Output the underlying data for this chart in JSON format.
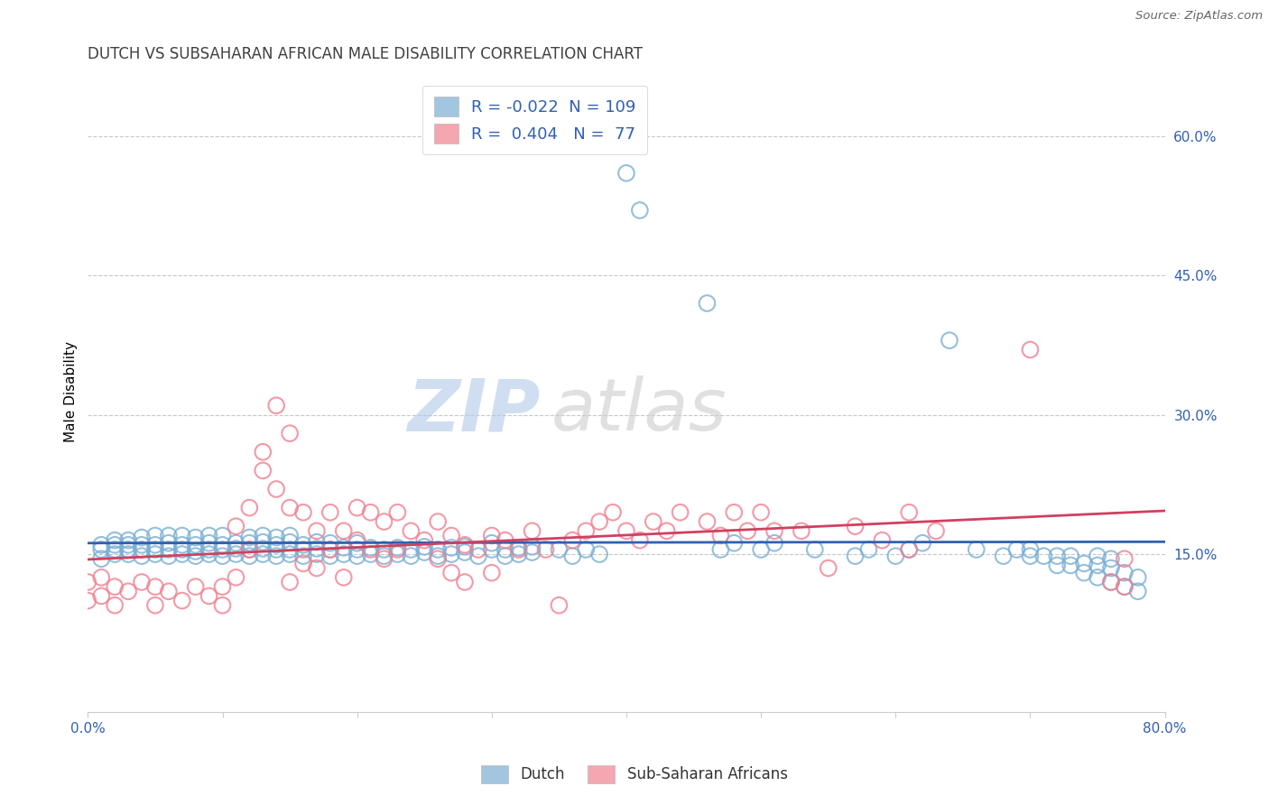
{
  "title": "DUTCH VS SUBSAHARAN AFRICAN MALE DISABILITY CORRELATION CHART",
  "source": "Source: ZipAtlas.com",
  "ylabel": "Male Disability",
  "xlim": [
    0.0,
    0.8
  ],
  "ylim": [
    -0.02,
    0.67
  ],
  "x_ticks": [
    0.0,
    0.1,
    0.2,
    0.3,
    0.4,
    0.5,
    0.6,
    0.7,
    0.8
  ],
  "x_tick_labels": [
    "0.0%",
    "",
    "",
    "",
    "",
    "",
    "",
    "",
    "80.0%"
  ],
  "y_ticks_right": [
    0.15,
    0.3,
    0.45,
    0.6
  ],
  "y_tick_labels_right": [
    "15.0%",
    "30.0%",
    "45.0%",
    "60.0%"
  ],
  "dutch_color": "#7bafd4",
  "african_color": "#f08090",
  "dutch_line_color": "#3060b0",
  "african_line_color": "#d04060",
  "legend_dutch_R": "-0.022",
  "legend_dutch_N": "109",
  "legend_african_R": "0.404",
  "legend_african_N": "77",
  "legend_label_dutch": "Dutch",
  "legend_label_african": "Sub-Saharan Africans",
  "watermark": "ZIPatlas",
  "background_color": "#ffffff",
  "plot_background": "#ffffff",
  "grid_color": "#c8c8c8",
  "dutch_scatter": [
    [
      0.01,
      0.155
    ],
    [
      0.01,
      0.145
    ],
    [
      0.01,
      0.16
    ],
    [
      0.02,
      0.15
    ],
    [
      0.02,
      0.155
    ],
    [
      0.02,
      0.16
    ],
    [
      0.02,
      0.165
    ],
    [
      0.03,
      0.15
    ],
    [
      0.03,
      0.155
    ],
    [
      0.03,
      0.16
    ],
    [
      0.03,
      0.165
    ],
    [
      0.04,
      0.148
    ],
    [
      0.04,
      0.155
    ],
    [
      0.04,
      0.16
    ],
    [
      0.04,
      0.168
    ],
    [
      0.05,
      0.15
    ],
    [
      0.05,
      0.155
    ],
    [
      0.05,
      0.16
    ],
    [
      0.05,
      0.17
    ],
    [
      0.06,
      0.148
    ],
    [
      0.06,
      0.155
    ],
    [
      0.06,
      0.162
    ],
    [
      0.06,
      0.17
    ],
    [
      0.07,
      0.15
    ],
    [
      0.07,
      0.155
    ],
    [
      0.07,
      0.16
    ],
    [
      0.07,
      0.17
    ],
    [
      0.08,
      0.148
    ],
    [
      0.08,
      0.153
    ],
    [
      0.08,
      0.16
    ],
    [
      0.08,
      0.168
    ],
    [
      0.09,
      0.15
    ],
    [
      0.09,
      0.155
    ],
    [
      0.09,
      0.162
    ],
    [
      0.09,
      0.17
    ],
    [
      0.1,
      0.148
    ],
    [
      0.1,
      0.155
    ],
    [
      0.1,
      0.16
    ],
    [
      0.1,
      0.17
    ],
    [
      0.11,
      0.15
    ],
    [
      0.11,
      0.156
    ],
    [
      0.11,
      0.162
    ],
    [
      0.12,
      0.148
    ],
    [
      0.12,
      0.155
    ],
    [
      0.12,
      0.162
    ],
    [
      0.12,
      0.168
    ],
    [
      0.13,
      0.15
    ],
    [
      0.13,
      0.156
    ],
    [
      0.13,
      0.163
    ],
    [
      0.13,
      0.17
    ],
    [
      0.14,
      0.148
    ],
    [
      0.14,
      0.155
    ],
    [
      0.14,
      0.16
    ],
    [
      0.14,
      0.168
    ],
    [
      0.15,
      0.15
    ],
    [
      0.15,
      0.155
    ],
    [
      0.15,
      0.163
    ],
    [
      0.15,
      0.17
    ],
    [
      0.16,
      0.148
    ],
    [
      0.16,
      0.155
    ],
    [
      0.16,
      0.16
    ],
    [
      0.17,
      0.15
    ],
    [
      0.17,
      0.156
    ],
    [
      0.17,
      0.163
    ],
    [
      0.18,
      0.148
    ],
    [
      0.18,
      0.155
    ],
    [
      0.18,
      0.162
    ],
    [
      0.19,
      0.15
    ],
    [
      0.19,
      0.157
    ],
    [
      0.2,
      0.148
    ],
    [
      0.2,
      0.155
    ],
    [
      0.2,
      0.162
    ],
    [
      0.21,
      0.15
    ],
    [
      0.21,
      0.157
    ],
    [
      0.22,
      0.148
    ],
    [
      0.22,
      0.155
    ],
    [
      0.23,
      0.15
    ],
    [
      0.23,
      0.157
    ],
    [
      0.24,
      0.148
    ],
    [
      0.24,
      0.155
    ],
    [
      0.25,
      0.152
    ],
    [
      0.25,
      0.158
    ],
    [
      0.26,
      0.148
    ],
    [
      0.26,
      0.155
    ],
    [
      0.27,
      0.15
    ],
    [
      0.27,
      0.157
    ],
    [
      0.28,
      0.152
    ],
    [
      0.28,
      0.158
    ],
    [
      0.29,
      0.148
    ],
    [
      0.3,
      0.155
    ],
    [
      0.3,
      0.162
    ],
    [
      0.31,
      0.148
    ],
    [
      0.31,
      0.155
    ],
    [
      0.32,
      0.15
    ],
    [
      0.32,
      0.157
    ],
    [
      0.33,
      0.152
    ],
    [
      0.33,
      0.158
    ],
    [
      0.35,
      0.155
    ],
    [
      0.36,
      0.148
    ],
    [
      0.37,
      0.155
    ],
    [
      0.38,
      0.15
    ],
    [
      0.4,
      0.56
    ],
    [
      0.41,
      0.52
    ],
    [
      0.46,
      0.42
    ],
    [
      0.47,
      0.155
    ],
    [
      0.48,
      0.162
    ],
    [
      0.5,
      0.155
    ],
    [
      0.51,
      0.162
    ],
    [
      0.54,
      0.155
    ],
    [
      0.57,
      0.148
    ],
    [
      0.58,
      0.155
    ],
    [
      0.6,
      0.148
    ],
    [
      0.61,
      0.155
    ],
    [
      0.62,
      0.162
    ],
    [
      0.64,
      0.38
    ],
    [
      0.66,
      0.155
    ],
    [
      0.68,
      0.148
    ],
    [
      0.69,
      0.155
    ],
    [
      0.7,
      0.148
    ],
    [
      0.7,
      0.155
    ],
    [
      0.71,
      0.148
    ],
    [
      0.72,
      0.138
    ],
    [
      0.72,
      0.148
    ],
    [
      0.73,
      0.138
    ],
    [
      0.73,
      0.148
    ],
    [
      0.74,
      0.13
    ],
    [
      0.74,
      0.14
    ],
    [
      0.75,
      0.125
    ],
    [
      0.75,
      0.138
    ],
    [
      0.75,
      0.148
    ],
    [
      0.76,
      0.12
    ],
    [
      0.76,
      0.135
    ],
    [
      0.76,
      0.145
    ],
    [
      0.77,
      0.115
    ],
    [
      0.77,
      0.13
    ],
    [
      0.78,
      0.11
    ],
    [
      0.78,
      0.125
    ]
  ],
  "african_scatter": [
    [
      0.0,
      0.12
    ],
    [
      0.0,
      0.1
    ],
    [
      0.01,
      0.125
    ],
    [
      0.01,
      0.105
    ],
    [
      0.02,
      0.115
    ],
    [
      0.02,
      0.095
    ],
    [
      0.03,
      0.11
    ],
    [
      0.04,
      0.12
    ],
    [
      0.05,
      0.115
    ],
    [
      0.05,
      0.095
    ],
    [
      0.06,
      0.11
    ],
    [
      0.07,
      0.1
    ],
    [
      0.08,
      0.115
    ],
    [
      0.09,
      0.105
    ],
    [
      0.1,
      0.115
    ],
    [
      0.1,
      0.095
    ],
    [
      0.11,
      0.125
    ],
    [
      0.11,
      0.18
    ],
    [
      0.12,
      0.155
    ],
    [
      0.12,
      0.2
    ],
    [
      0.13,
      0.24
    ],
    [
      0.13,
      0.26
    ],
    [
      0.14,
      0.31
    ],
    [
      0.14,
      0.22
    ],
    [
      0.15,
      0.28
    ],
    [
      0.15,
      0.2
    ],
    [
      0.15,
      0.12
    ],
    [
      0.16,
      0.195
    ],
    [
      0.16,
      0.14
    ],
    [
      0.17,
      0.175
    ],
    [
      0.17,
      0.135
    ],
    [
      0.18,
      0.195
    ],
    [
      0.18,
      0.155
    ],
    [
      0.19,
      0.175
    ],
    [
      0.19,
      0.125
    ],
    [
      0.2,
      0.2
    ],
    [
      0.2,
      0.165
    ],
    [
      0.21,
      0.195
    ],
    [
      0.21,
      0.155
    ],
    [
      0.22,
      0.185
    ],
    [
      0.22,
      0.145
    ],
    [
      0.23,
      0.195
    ],
    [
      0.23,
      0.155
    ],
    [
      0.24,
      0.175
    ],
    [
      0.25,
      0.165
    ],
    [
      0.26,
      0.185
    ],
    [
      0.26,
      0.145
    ],
    [
      0.27,
      0.17
    ],
    [
      0.27,
      0.13
    ],
    [
      0.28,
      0.16
    ],
    [
      0.28,
      0.12
    ],
    [
      0.29,
      0.155
    ],
    [
      0.3,
      0.17
    ],
    [
      0.3,
      0.13
    ],
    [
      0.31,
      0.165
    ],
    [
      0.32,
      0.155
    ],
    [
      0.33,
      0.175
    ],
    [
      0.34,
      0.155
    ],
    [
      0.35,
      0.095
    ],
    [
      0.36,
      0.165
    ],
    [
      0.37,
      0.175
    ],
    [
      0.38,
      0.185
    ],
    [
      0.39,
      0.195
    ],
    [
      0.4,
      0.175
    ],
    [
      0.41,
      0.165
    ],
    [
      0.42,
      0.185
    ],
    [
      0.43,
      0.175
    ],
    [
      0.44,
      0.195
    ],
    [
      0.46,
      0.185
    ],
    [
      0.47,
      0.17
    ],
    [
      0.48,
      0.195
    ],
    [
      0.49,
      0.175
    ],
    [
      0.5,
      0.195
    ],
    [
      0.51,
      0.175
    ],
    [
      0.53,
      0.175
    ],
    [
      0.55,
      0.135
    ],
    [
      0.57,
      0.18
    ],
    [
      0.59,
      0.165
    ],
    [
      0.61,
      0.155
    ],
    [
      0.61,
      0.195
    ],
    [
      0.63,
      0.175
    ],
    [
      0.7,
      0.37
    ],
    [
      0.76,
      0.12
    ],
    [
      0.77,
      0.145
    ],
    [
      0.77,
      0.115
    ]
  ]
}
